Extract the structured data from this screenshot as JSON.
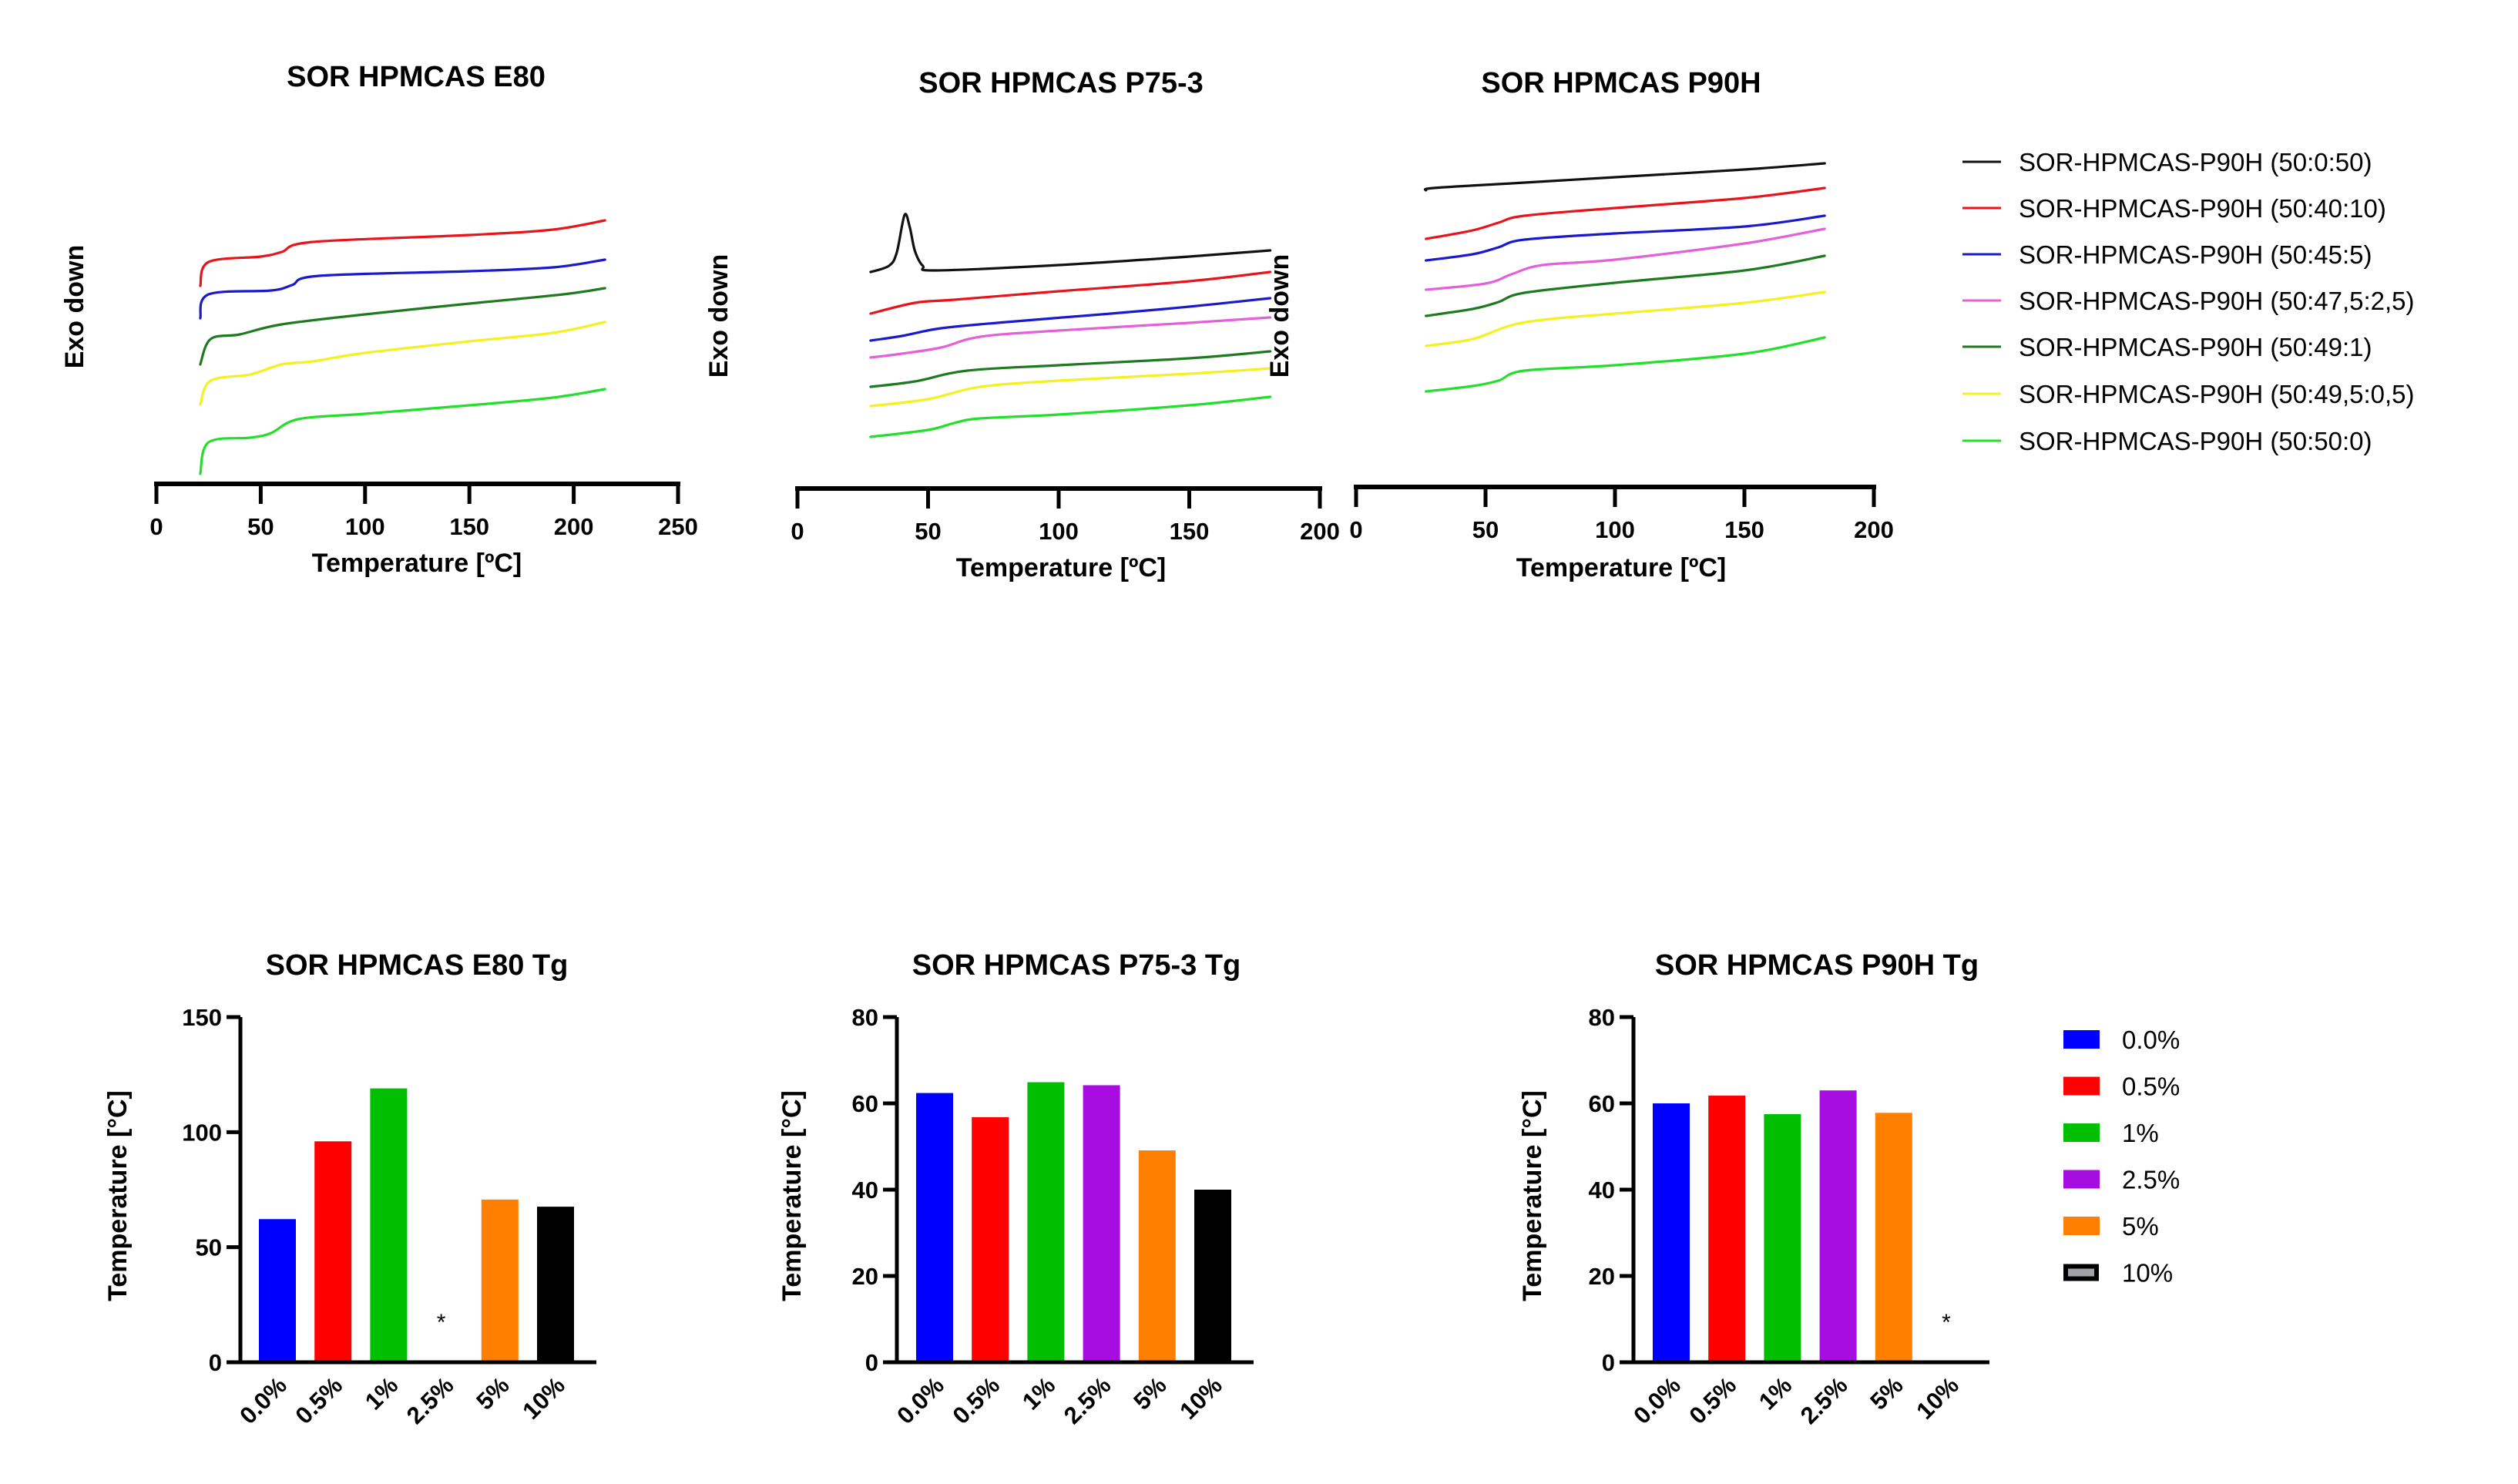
{
  "chart_data": [
    {
      "id": "dsc_e80",
      "type": "line",
      "title": "SOR HPMCAS E80",
      "xlabel": "Temperature [ºC]",
      "ylabel": "Exo down",
      "xlim": [
        0,
        250
      ],
      "xticks": [
        0,
        50,
        100,
        150,
        200,
        250
      ],
      "ylim": [
        0,
        50
      ],
      "y_units": "arbitrary heat flow (offset-stacked)",
      "grid": false,
      "series": [
        {
          "name": "SOR-HPMCAS-P90H (50:40:10)",
          "color": "#e8141c",
          "x": [
            21,
            25,
            50,
            60,
            75,
            150,
            190,
            215
          ],
          "y": [
            27.9,
            31.0,
            31.7,
            32.3,
            33.6,
            34.5,
            35.2,
            36.4
          ]
        },
        {
          "name": "SOR-HPMCAS-P90H (50:45:5)",
          "color": "#1a1acc",
          "x": [
            21,
            25,
            55,
            65,
            78,
            150,
            190,
            215
          ],
          "y": [
            23.7,
            26.8,
            27.3,
            28.0,
            29.2,
            29.8,
            30.3,
            31.3
          ]
        },
        {
          "name": "SOR-HPMCAS-P90H (50:49:1)",
          "color": "#1e7a1e",
          "x": [
            21,
            26,
            40,
            60,
            100,
            150,
            195,
            215
          ],
          "y": [
            17.7,
            21.0,
            21.6,
            22.9,
            24.2,
            25.6,
            26.8,
            27.6
          ]
        },
        {
          "name": "SOR-HPMCAS-P90H (50:49,5:0,5)",
          "color": "#f5f020",
          "x": [
            21,
            26,
            45,
            60,
            75,
            100,
            150,
            190,
            215
          ],
          "y": [
            12.5,
            15.6,
            16.4,
            17.7,
            18.1,
            19.2,
            20.7,
            21.8,
            23.2
          ]
        },
        {
          "name": "SOR-HPMCAS-P90H (50:50:0)",
          "color": "#22e02a",
          "x": [
            21,
            25,
            45,
            55,
            68,
            100,
            150,
            190,
            215
          ],
          "y": [
            3.5,
            7.6,
            8.2,
            8.8,
            10.6,
            11.3,
            12.4,
            13.4,
            14.5
          ]
        }
      ]
    },
    {
      "id": "dsc_p75",
      "type": "line",
      "title": "SOR HPMCAS P75-3",
      "xlabel": "Temperature [ºC]",
      "ylabel": "Exo down",
      "xlim": [
        0,
        200
      ],
      "xticks": [
        0,
        50,
        100,
        150,
        200
      ],
      "ylim": [
        0,
        50
      ],
      "y_units": "arbitrary heat flow (offset-stacked)",
      "grid": false,
      "series": [
        {
          "name": "SOR-HPMCAS-P90H (50:0:50)",
          "color": "#111111",
          "x": [
            28,
            35,
            38,
            41,
            43,
            45,
            48,
            53,
            100,
            150,
            181
          ],
          "y": [
            29.7,
            30.5,
            32.2,
            37.1,
            35.5,
            32.4,
            30.5,
            29.9,
            30.6,
            31.7,
            32.5
          ]
        },
        {
          "name": "SOR-HPMCAS-P90H (50:40:10)",
          "color": "#e8141c",
          "x": [
            28,
            45,
            60,
            100,
            150,
            181
          ],
          "y": [
            24.3,
            25.7,
            26.1,
            27.2,
            28.5,
            29.7
          ]
        },
        {
          "name": "SOR-HPMCAS-P90H (50:45:5)",
          "color": "#1a1acc",
          "x": [
            28,
            40,
            55,
            80,
            120,
            150,
            181
          ],
          "y": [
            20.8,
            21.4,
            22.4,
            23.2,
            24.3,
            25.2,
            26.3
          ]
        },
        {
          "name": "SOR-HPMCAS-P90H (50:47,5:2,5)",
          "color": "#e45fd8",
          "x": [
            28,
            40,
            55,
            70,
            100,
            150,
            181
          ],
          "y": [
            18.6,
            19.1,
            19.9,
            21.3,
            22.1,
            23.1,
            23.8
          ]
        },
        {
          "name": "SOR-HPMCAS-P90H (50:49:1)",
          "color": "#1e7a1e",
          "x": [
            28,
            45,
            65,
            100,
            150,
            181
          ],
          "y": [
            14.8,
            15.5,
            16.9,
            17.6,
            18.5,
            19.4
          ]
        },
        {
          "name": "SOR-HPMCAS-P90H (50:49,5:0,5)",
          "color": "#f5f020",
          "x": [
            28,
            50,
            70,
            100,
            150,
            181
          ],
          "y": [
            12.3,
            13.2,
            14.8,
            15.6,
            16.5,
            17.2
          ]
        },
        {
          "name": "SOR-HPMCAS-P90H (50:50:0)",
          "color": "#22e02a",
          "x": [
            28,
            50,
            60,
            70,
            100,
            150,
            181
          ],
          "y": [
            8.3,
            9.2,
            10.1,
            10.7,
            11.2,
            12.4,
            13.5
          ]
        }
      ]
    },
    {
      "id": "dsc_p90h",
      "type": "line",
      "title": "SOR HPMCAS P90H",
      "xlabel": "Temperature [ºC]",
      "ylabel": "Exo down",
      "xlim": [
        0,
        200
      ],
      "xticks": [
        0,
        50,
        100,
        150,
        200
      ],
      "ylim": [
        0,
        50
      ],
      "y_units": "arbitrary heat flow (offset-stacked)",
      "grid": false,
      "legend_position": "right",
      "series": [
        {
          "name": "SOR-HPMCAS-P90H (50:0:50)",
          "color": "#111111",
          "x": [
            27,
            30,
            60,
            100,
            150,
            181
          ],
          "y": [
            40.3,
            40.6,
            41.2,
            42.0,
            43.0,
            43.8
          ]
        },
        {
          "name": "SOR-HPMCAS-P90H (50:40:10)",
          "color": "#e8141c",
          "x": [
            27,
            45,
            55,
            65,
            100,
            150,
            181
          ],
          "y": [
            34.0,
            35.1,
            36.1,
            37.0,
            38.0,
            39.3,
            40.6
          ]
        },
        {
          "name": "SOR-HPMCAS-P90H (50:45:5)",
          "color": "#1a1acc",
          "x": [
            27,
            45,
            55,
            65,
            100,
            150,
            181
          ],
          "y": [
            31.2,
            32.0,
            32.9,
            33.9,
            34.7,
            35.6,
            37.0
          ]
        },
        {
          "name": "SOR-HPMCAS-P90H (50:47,5:2,5)",
          "color": "#e45fd8",
          "x": [
            27,
            50,
            60,
            72,
            100,
            150,
            181
          ],
          "y": [
            27.4,
            28.2,
            29.4,
            30.6,
            31.3,
            33.4,
            35.3
          ]
        },
        {
          "name": "SOR-HPMCAS-P90H (50:49:1)",
          "color": "#1e7a1e",
          "x": [
            27,
            45,
            55,
            65,
            100,
            150,
            181
          ],
          "y": [
            24.0,
            24.9,
            25.8,
            27.0,
            28.3,
            29.9,
            31.8
          ]
        },
        {
          "name": "SOR-HPMCAS-P90H (50:49,5:0,5)",
          "color": "#f5f020",
          "x": [
            27,
            45,
            60,
            75,
            100,
            150,
            181
          ],
          "y": [
            20.1,
            21.0,
            22.8,
            23.6,
            24.3,
            25.7,
            27.1
          ]
        },
        {
          "name": "SOR-HPMCAS-P90H (50:50:0)",
          "color": "#22e02a",
          "x": [
            27,
            45,
            55,
            65,
            100,
            150,
            181
          ],
          "y": [
            14.2,
            14.9,
            15.6,
            16.9,
            17.6,
            19.1,
            21.2
          ]
        }
      ]
    },
    {
      "id": "bar_e80",
      "type": "bar",
      "title": "SOR HPMCAS E80 Tg",
      "xlabel": "",
      "ylabel": "Temperature [°C]",
      "ylim": [
        0,
        150
      ],
      "yticks": [
        0,
        50,
        100,
        150
      ],
      "categories": [
        "0.0%",
        "0.5%",
        "1%",
        "2.5%",
        "5%",
        "10%"
      ],
      "values": [
        62.2,
        96.0,
        119.0,
        null,
        70.7,
        67.6
      ],
      "annotations": [
        {
          "category": "2.5%",
          "text": "*"
        }
      ]
    },
    {
      "id": "bar_p75",
      "type": "bar",
      "title": "SOR HPMCAS P75-3 Tg",
      "xlabel": "",
      "ylabel": "Temperature [°C]",
      "ylim": [
        0,
        80
      ],
      "yticks": [
        0,
        20,
        40,
        60,
        80
      ],
      "categories": [
        "0.0%",
        "0.5%",
        "1%",
        "2.5%",
        "5%",
        "10%"
      ],
      "values": [
        62.4,
        56.8,
        64.9,
        64.2,
        49.1,
        40.0
      ],
      "annotations": []
    },
    {
      "id": "bar_p90h",
      "type": "bar",
      "title": "SOR HPMCAS P90H Tg",
      "xlabel": "",
      "ylabel": "Temperature [°C]",
      "ylim": [
        0,
        80
      ],
      "yticks": [
        0,
        20,
        40,
        60,
        80
      ],
      "categories": [
        "0.0%",
        "0.5%",
        "1%",
        "2.5%",
        "5%",
        "10%"
      ],
      "values": [
        60.0,
        61.8,
        57.5,
        63.0,
        57.8,
        null
      ],
      "annotations": [
        {
          "category": "10%",
          "text": "*"
        }
      ],
      "legend_position": "right"
    }
  ],
  "line_legend": [
    {
      "label": " SOR-HPMCAS-P90H (50:0:50)",
      "color": "#111111"
    },
    {
      "label": "SOR-HPMCAS-P90H (50:40:10)",
      "color": "#e8141c"
    },
    {
      "label": "SOR-HPMCAS-P90H (50:45:5)",
      "color": "#1a1acc"
    },
    {
      "label": "SOR-HPMCAS-P90H (50:47,5:2,5)",
      "color": "#e45fd8"
    },
    {
      "label": "SOR-HPMCAS-P90H (50:49:1)",
      "color": "#1e7a1e"
    },
    {
      "label": "SOR-HPMCAS-P90H (50:49,5:0,5)",
      "color": "#f5f020"
    },
    {
      "label": "SOR-HPMCAS-P90H (50:50:0)",
      "color": "#22e02a"
    }
  ],
  "bar_legend": [
    {
      "label": "0.0%",
      "color": "#0000ff",
      "style": "fill"
    },
    {
      "label": "0.5%",
      "color": "#ff0000",
      "style": "fill"
    },
    {
      "label": "1%",
      "color": "#00bf00",
      "style": "fill"
    },
    {
      "label": "2.5%",
      "color": "#a70ce0",
      "style": "fill"
    },
    {
      "label": "5%",
      "color": "#ff8000",
      "style": "fill"
    },
    {
      "label": "10%",
      "color": "#a0a0a8",
      "style": "outlined",
      "stroke": "#000000"
    }
  ],
  "bar_colors": [
    "#0000ff",
    "#ff0000",
    "#00bf00",
    "#a70ce0",
    "#ff8000",
    "#000000"
  ]
}
